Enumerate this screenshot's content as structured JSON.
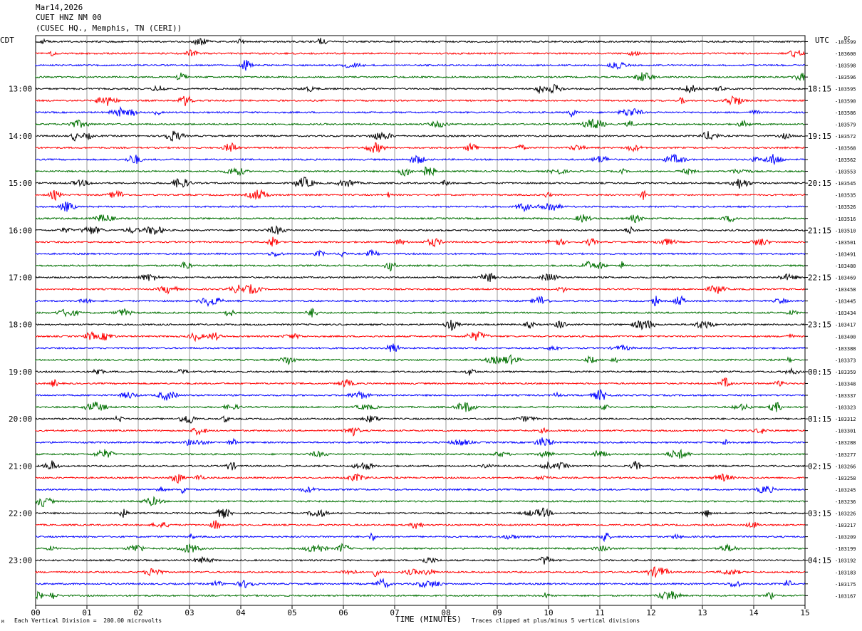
{
  "header": {
    "date": "Mar14,2026",
    "station": "CUET HNZ NM 00",
    "location": "(CUSEC HQ., Memphis, TN (CERI))"
  },
  "corner": {
    "left_tz": "CDT",
    "right_tz": "UTC",
    "dc_label": "DC"
  },
  "footer": {
    "scale_text": "Each Vertical Division =  200.00 microvolts",
    "clip_text": "Traces clipped at plus/minus 5 vertical divisions",
    "mark": "M"
  },
  "chart_data": {
    "type": "line",
    "title": "",
    "xlabel": "TIME (MINUTES)",
    "ylabel": "",
    "x_ticks": [
      "00",
      "01",
      "02",
      "03",
      "04",
      "05",
      "06",
      "07",
      "08",
      "09",
      "10",
      "11",
      "12",
      "13",
      "14",
      "15"
    ],
    "xlim": [
      0,
      15
    ],
    "grid": true,
    "trace_colors": [
      "#000000",
      "#ff0000",
      "#0000ff",
      "#007000"
    ],
    "left_hour_labels": [
      "13:00",
      "14:00",
      "15:00",
      "16:00",
      "17:00",
      "18:00",
      "19:00",
      "20:00",
      "21:00",
      "22:00",
      "23:00"
    ],
    "right_hour_labels": [
      "18:15",
      "19:15",
      "20:15",
      "21:15",
      "22:15",
      "23:15",
      "00:15",
      "01:15",
      "02:15",
      "03:15",
      "04:15"
    ],
    "dc_offsets": [
      "-103599",
      "-103600",
      "-103598",
      "-103596",
      "-103595",
      "-103590",
      "-103586",
      "-103579",
      "-103572",
      "-103568",
      "-103562",
      "-103553",
      "-103545",
      "-103535",
      "-103526",
      "-103516",
      "-103510",
      "-103501",
      "-103491",
      "-103480",
      "-103469",
      "-103458",
      "-103445",
      "-103434",
      "-103417",
      "-103400",
      "-103388",
      "-103373",
      "-103359",
      "-103348",
      "-103337",
      "-103323",
      "-103312",
      "-103301",
      "-103288",
      "-103277",
      "-103266",
      "-103258",
      "-103245",
      "-103236",
      "-103226",
      "-103217",
      "-103209",
      "-103199",
      "-103192",
      "-103183",
      "-103175",
      "-103167"
    ]
  }
}
